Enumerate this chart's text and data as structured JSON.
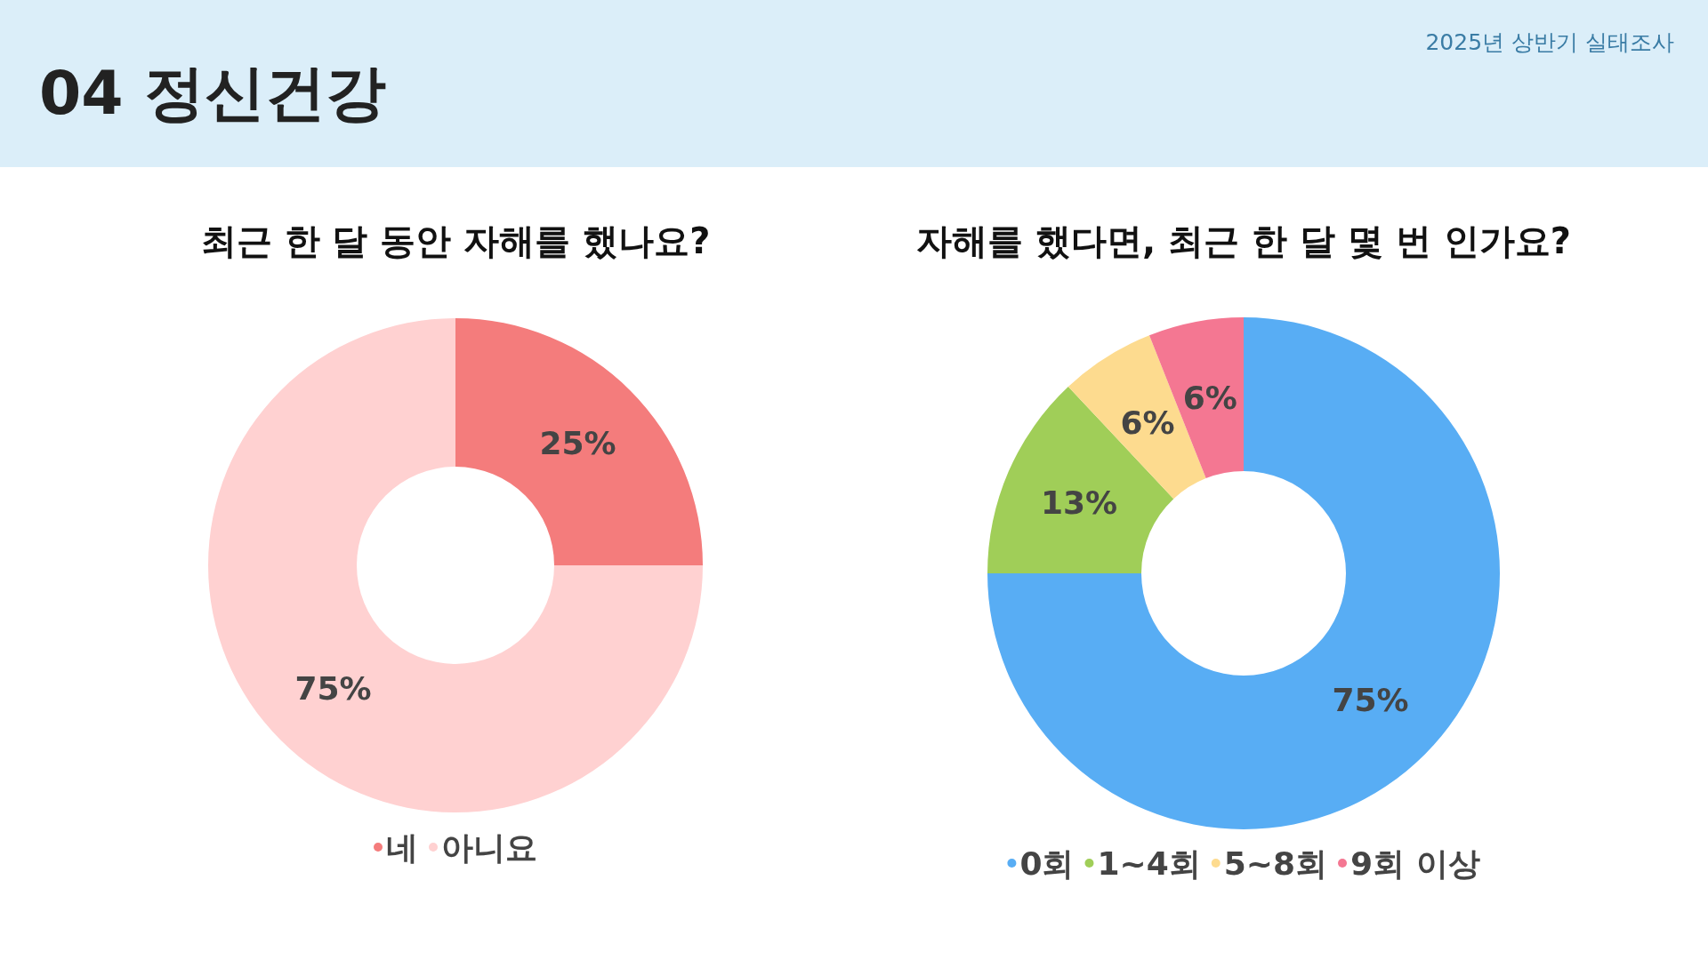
{
  "chart_data": [
    {
      "type": "other",
      "title": "04 정신건강",
      "subtitle": "2025년 상반기 실태조사"
    },
    {
      "type": "donut",
      "title": "최근 한 달 동안 자해를 했나요?",
      "categories": [
        "네",
        "아니요"
      ],
      "values": [
        25,
        75
      ],
      "value_labels": [
        "25%",
        "75%"
      ],
      "colors": [
        "#f47c7c",
        "#ffd1d1"
      ],
      "legend": "bottom"
    },
    {
      "type": "donut",
      "title": "자해를 했다면, 최근 한 달 몇 번 인가요?",
      "categories": [
        "0회",
        "1~4회",
        "5~8회",
        "9회 이상"
      ],
      "values": [
        75,
        13,
        6,
        6
      ],
      "value_labels": [
        "75%",
        "13%",
        "6%",
        "6%"
      ],
      "colors": [
        "#58adf4",
        "#a0ce58",
        "#fddb8f",
        "#f47792"
      ],
      "legend": "bottom"
    }
  ]
}
